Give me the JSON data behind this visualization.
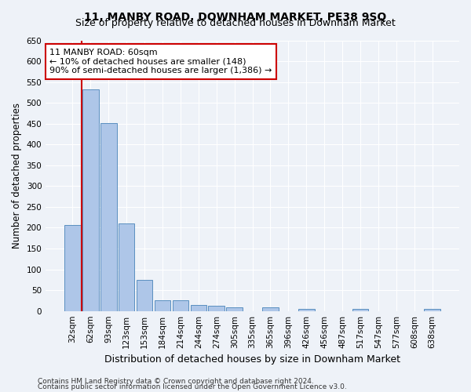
{
  "title": "11, MANBY ROAD, DOWNHAM MARKET, PE38 9SQ",
  "subtitle": "Size of property relative to detached houses in Downham Market",
  "xlabel": "Distribution of detached houses by size in Downham Market",
  "ylabel": "Number of detached properties",
  "categories": [
    "32sqm",
    "62sqm",
    "93sqm",
    "123sqm",
    "153sqm",
    "184sqm",
    "214sqm",
    "244sqm",
    "274sqm",
    "305sqm",
    "335sqm",
    "365sqm",
    "396sqm",
    "426sqm",
    "456sqm",
    "487sqm",
    "517sqm",
    "547sqm",
    "577sqm",
    "608sqm",
    "638sqm"
  ],
  "values": [
    207,
    533,
    451,
    211,
    75,
    26,
    26,
    15,
    12,
    8,
    0,
    8,
    0,
    5,
    0,
    0,
    5,
    0,
    0,
    0,
    5
  ],
  "bar_color": "#aec6e8",
  "bar_edge_color": "#5a8fc0",
  "annotation_text": "11 MANBY ROAD: 60sqm\n← 10% of detached houses are smaller (148)\n90% of semi-detached houses are larger (1,386) →",
  "annotation_box_color": "#ffffff",
  "annotation_box_edge": "#cc0000",
  "vline_color": "#cc0000",
  "vline_x": 1,
  "ylim": [
    0,
    650
  ],
  "yticks": [
    0,
    50,
    100,
    150,
    200,
    250,
    300,
    350,
    400,
    450,
    500,
    550,
    600,
    650
  ],
  "footnote1": "Contains HM Land Registry data © Crown copyright and database right 2024.",
  "footnote2": "Contains public sector information licensed under the Open Government Licence v3.0.",
  "bg_color": "#eef2f8",
  "grid_color": "#ffffff",
  "title_fontsize": 10,
  "subtitle_fontsize": 9,
  "tick_fontsize": 7.5,
  "xlabel_fontsize": 9,
  "ylabel_fontsize": 8.5,
  "footnote_fontsize": 6.5
}
